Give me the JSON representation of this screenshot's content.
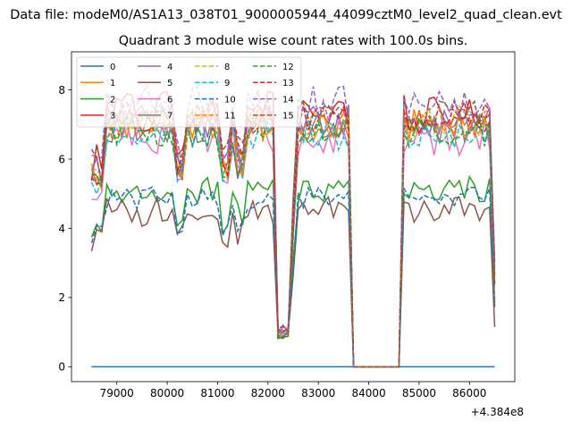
{
  "chart_data": {
    "type": "line",
    "suptitle": "Data file: modeM0/AS1A13_038T01_9000005944_44099cztM0_level2_quad_clean.evt",
    "title": "Quadrant 3 module wise count rates with 100.0s bins.",
    "xlabel": "",
    "ylabel": "",
    "x_offset_label": "+4.384e8",
    "xlim": [
      78100,
      86900
    ],
    "ylim": [
      -0.43,
      9.1
    ],
    "x_ticks": [
      79000,
      80000,
      81000,
      82000,
      83000,
      84000,
      85000,
      86000
    ],
    "y_ticks": [
      0,
      2,
      4,
      6,
      8
    ],
    "legend_loc": "upper left",
    "legend_ncol": 4,
    "x_start": 78500,
    "x_step": 100,
    "x_end": 86500,
    "shape_note": "Each series: 81 points at x = 78500 + 100*i (i = 0..80). Values are approximate readings from the figure.",
    "series": [
      {
        "name": "0",
        "color": "#1f77b4",
        "dash": false,
        "level": 0,
        "scale": 0,
        "offset": 0.0
      },
      {
        "name": "1",
        "color": "#ff7f0e",
        "dash": false,
        "level": 7.0,
        "scale": 1.0,
        "offset": 0.2
      },
      {
        "name": "2",
        "color": "#2ca02c",
        "dash": false,
        "level": 5.1,
        "scale": 0.8,
        "offset": 0.6
      },
      {
        "name": "3",
        "color": "#d62728",
        "dash": false,
        "level": 7.4,
        "scale": 1.2,
        "offset": 1.1
      },
      {
        "name": "4",
        "color": "#9467bd",
        "dash": false,
        "level": 7.1,
        "scale": 1.0,
        "offset": 1.7
      },
      {
        "name": "5",
        "color": "#8c564b",
        "dash": false,
        "level": 4.5,
        "scale": 0.9,
        "offset": 2.3
      },
      {
        "name": "6",
        "color": "#e377c2",
        "dash": false,
        "level": 6.6,
        "scale": 1.0,
        "offset": 2.9
      },
      {
        "name": "7",
        "color": "#7f7f7f",
        "dash": false,
        "level": 6.9,
        "scale": 0.9,
        "offset": 3.4
      },
      {
        "name": "8",
        "color": "#bcbd22",
        "dash": true,
        "level": 7.1,
        "scale": 0.9,
        "offset": 3.9
      },
      {
        "name": "9",
        "color": "#17becf",
        "dash": true,
        "level": 6.7,
        "scale": 0.9,
        "offset": 4.5
      },
      {
        "name": "10",
        "color": "#1f77b4",
        "dash": true,
        "level": 4.9,
        "scale": 0.7,
        "offset": 5.1
      },
      {
        "name": "11",
        "color": "#ff7f0e",
        "dash": true,
        "level": 7.0,
        "scale": 0.9,
        "offset": 5.6
      },
      {
        "name": "12",
        "color": "#2ca02c",
        "dash": true,
        "level": 6.8,
        "scale": 0.9,
        "offset": 6.2
      },
      {
        "name": "13",
        "color": "#d62728",
        "dash": true,
        "level": 7.2,
        "scale": 1.0,
        "offset": 6.8
      },
      {
        "name": "14",
        "color": "#9467bd",
        "dash": true,
        "level": 7.6,
        "scale": 1.1,
        "offset": 7.3
      },
      {
        "name": "15",
        "color": "#8c564b",
        "dash": true,
        "level": 7.3,
        "scale": 1.0,
        "offset": 7.9
      }
    ]
  }
}
